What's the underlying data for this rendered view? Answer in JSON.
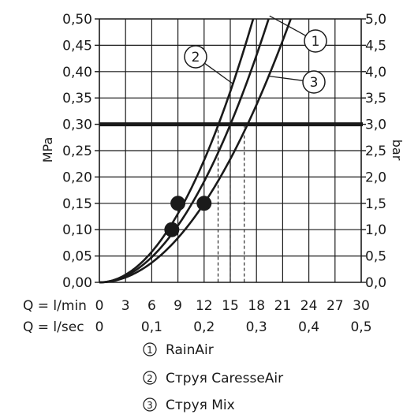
{
  "chart_data": {
    "type": "line",
    "xlabel": "Q = l/min",
    "x2label": "Q = l/sec",
    "ylabel": "MPa",
    "y2label": "bar",
    "xlim": [
      0,
      30
    ],
    "ylim": [
      0,
      0.5
    ],
    "grid": true,
    "x_ticks": [
      "0",
      "3",
      "6",
      "9",
      "12",
      "15",
      "18",
      "21",
      "24",
      "27",
      "30"
    ],
    "x2_ticks": [
      "0",
      "0,1",
      "0,2",
      "0,3",
      "0,4",
      "0,5"
    ],
    "y_ticks": [
      "0,00",
      "0,05",
      "0,10",
      "0,15",
      "0,20",
      "0,25",
      "0,30",
      "0,35",
      "0,40",
      "0,45",
      "0,50"
    ],
    "y2_ticks": [
      "0,0",
      "0,5",
      "1,0",
      "1,5",
      "2,0",
      "2,5",
      "3,0",
      "3,5",
      "4,0",
      "4,5",
      "5,0"
    ],
    "reference_line": {
      "y": 0.3,
      "label": "3,0"
    },
    "series": [
      {
        "marker": "1",
        "name": "RainAir",
        "k": 0.00133,
        "x_at_ref": 15.0,
        "point": [
          9.0,
          0.15
        ]
      },
      {
        "marker": "2",
        "name": "Струя CaresseAir",
        "k": 0.00161,
        "x_at_ref": 13.6,
        "point": [
          8.3,
          0.1
        ]
      },
      {
        "marker": "3",
        "name": "Струя Mix",
        "k": 0.00104,
        "x_at_ref": 16.6,
        "point": [
          12.0,
          0.15
        ]
      }
    ],
    "legend": [
      {
        "num": "1",
        "label": "RainAir"
      },
      {
        "num": "2",
        "label": "Струя CaresseAir"
      },
      {
        "num": "3",
        "label": "Струя Mix"
      }
    ],
    "legend_position": "bottom",
    "curve_labels": [
      {
        "num": "1",
        "point_x": 19.5
      },
      {
        "num": "2",
        "point_x": 15.3
      },
      {
        "num": "3",
        "point_x": 19.4
      }
    ]
  }
}
